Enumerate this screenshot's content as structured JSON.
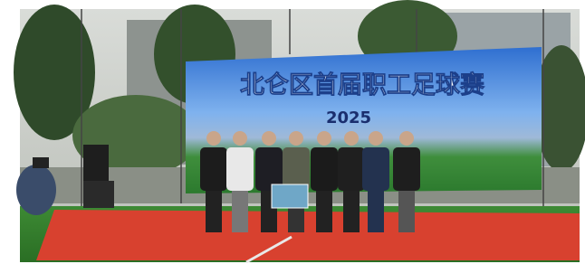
{
  "banner": {
    "title": "北仑区首届职工足球赛",
    "year": "2025"
  }
}
